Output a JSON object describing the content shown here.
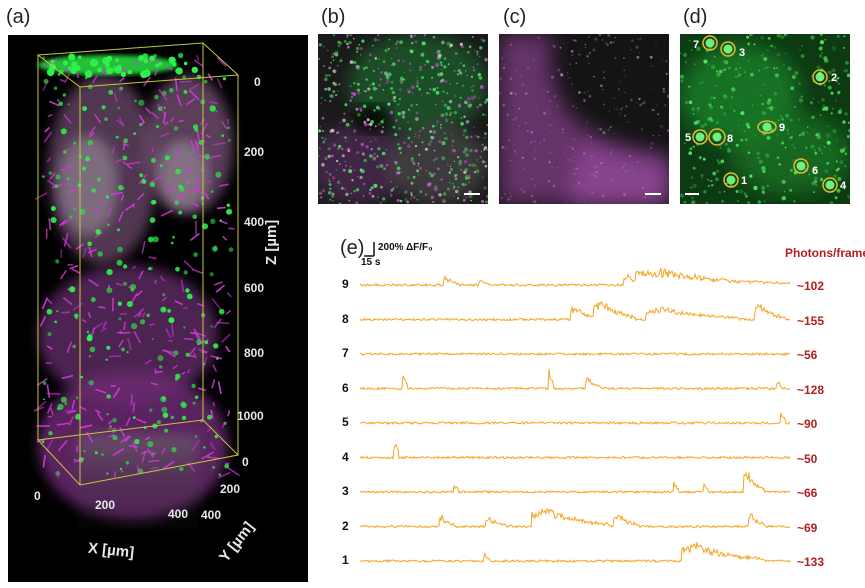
{
  "panels": {
    "a": "(a)",
    "b": "(b)",
    "c": "(c)",
    "d": "(d)",
    "e": "(e)"
  },
  "volume": {
    "z_ticks": [
      "0",
      "200",
      "400",
      "600",
      "800",
      "1000"
    ],
    "z_title": "Z [µm]",
    "x_ticks": [
      "0",
      "200",
      "400"
    ],
    "x_title": "X [µm]",
    "y_ticks": [
      "0",
      "200",
      "400"
    ],
    "y_title": "Y [µm]",
    "colors": {
      "green": "#2ef04a",
      "magenta": "#d23ad8",
      "box": "#c8c83a"
    }
  },
  "rois": [
    "1",
    "2",
    "3",
    "4",
    "5",
    "6",
    "7",
    "8",
    "9"
  ],
  "traces_panel": {
    "scale_y": "200% ΔF/F₀",
    "scale_x": "15 s",
    "photons_header": "Photons/frame",
    "trace_color": "#f5a524",
    "rows": [
      {
        "id": "9",
        "photons": "~102"
      },
      {
        "id": "8",
        "photons": "~155"
      },
      {
        "id": "7",
        "photons": "~56"
      },
      {
        "id": "6",
        "photons": "~128"
      },
      {
        "id": "5",
        "photons": "~90"
      },
      {
        "id": "4",
        "photons": "~50"
      },
      {
        "id": "3",
        "photons": "~66"
      },
      {
        "id": "2",
        "photons": "~69"
      },
      {
        "id": "1",
        "photons": "~133"
      }
    ]
  }
}
